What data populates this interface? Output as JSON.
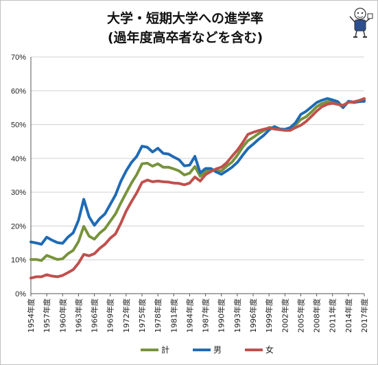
{
  "chart_data": {
    "type": "line",
    "title": "大学・短期大学への進学率",
    "subtitle": "(過年度高卒者などを含む)",
    "xlabel": "",
    "ylabel": "",
    "ylim": [
      0,
      70
    ],
    "y_ticks": [
      "0%",
      "10%",
      "20%",
      "30%",
      "40%",
      "50%",
      "60%",
      "70%"
    ],
    "x_tick_labels": [
      "1954年度",
      "1957年度",
      "1960年度",
      "1963年度",
      "1966年度",
      "1969年度",
      "1972年度",
      "1975年度",
      "1978年度",
      "1981年度",
      "1984年度",
      "1987年度",
      "1990年度",
      "1993年度",
      "1996年度",
      "1999年度",
      "2002年度",
      "2005年度",
      "2008年度",
      "2011年度",
      "2014年度",
      "2017年度"
    ],
    "x": [
      1954,
      1955,
      1956,
      1957,
      1958,
      1959,
      1960,
      1961,
      1962,
      1963,
      1964,
      1965,
      1966,
      1967,
      1968,
      1969,
      1970,
      1971,
      1972,
      1973,
      1974,
      1975,
      1976,
      1977,
      1978,
      1979,
      1980,
      1981,
      1982,
      1983,
      1984,
      1985,
      1986,
      1987,
      1988,
      1989,
      1990,
      1991,
      1992,
      1993,
      1994,
      1995,
      1996,
      1997,
      1998,
      1999,
      2000,
      2001,
      2002,
      2003,
      2004,
      2005,
      2006,
      2007,
      2008,
      2009,
      2010,
      2011,
      2012,
      2013,
      2014,
      2015,
      2016,
      2017
    ],
    "grid": true,
    "legend_position": "bottom",
    "series": [
      {
        "name": "計",
        "color": "#77933c",
        "values": [
          10.1,
          10.1,
          9.8,
          11.3,
          10.7,
          10.1,
          10.3,
          11.8,
          12.8,
          15.4,
          19.9,
          17.0,
          16.1,
          17.9,
          19.2,
          21.4,
          23.6,
          26.8,
          29.8,
          32.7,
          35.2,
          38.4,
          38.6,
          37.7,
          38.4,
          37.4,
          37.4,
          36.9,
          36.3,
          35.1,
          35.6,
          37.6,
          34.7,
          36.1,
          36.7,
          36.3,
          36.3,
          37.7,
          38.9,
          40.9,
          43.3,
          45.2,
          46.2,
          47.3,
          48.2,
          49.1,
          49.1,
          48.6,
          48.6,
          49.0,
          49.9,
          51.5,
          52.3,
          53.7,
          55.3,
          56.2,
          56.8,
          56.7,
          56.2,
          55.1,
          56.7,
          56.5,
          56.8,
          57.3
        ]
      },
      {
        "name": "男",
        "color": "#1f6bb5",
        "values": [
          15.3,
          15.0,
          14.6,
          16.7,
          15.8,
          15.1,
          14.9,
          16.7,
          18.0,
          21.7,
          27.9,
          22.7,
          20.2,
          22.2,
          23.6,
          26.4,
          29.2,
          33.2,
          36.3,
          38.8,
          40.6,
          43.6,
          43.3,
          41.9,
          43.0,
          41.5,
          41.3,
          40.4,
          39.6,
          37.8,
          38.0,
          40.6,
          35.7,
          37.0,
          37.0,
          36.0,
          35.3,
          36.3,
          37.4,
          38.8,
          40.9,
          42.9,
          44.2,
          45.6,
          46.8,
          48.4,
          49.4,
          48.7,
          48.6,
          49.1,
          50.5,
          53.0,
          53.9,
          55.2,
          56.5,
          57.2,
          57.7,
          57.3,
          56.8,
          55.0,
          56.9,
          56.6,
          56.8,
          56.9
        ]
      },
      {
        "name": "女",
        "color": "#c0504d",
        "values": [
          4.6,
          5.0,
          5.0,
          5.6,
          5.2,
          5.0,
          5.4,
          6.2,
          7.1,
          9.0,
          11.6,
          11.2,
          11.8,
          13.4,
          14.6,
          16.4,
          17.7,
          20.8,
          24.4,
          27.2,
          29.8,
          32.9,
          33.6,
          33.1,
          33.3,
          33.1,
          33.0,
          32.7,
          32.6,
          32.2,
          32.7,
          34.5,
          33.3,
          35.2,
          36.1,
          36.9,
          37.4,
          38.7,
          40.6,
          42.4,
          44.6,
          47.1,
          47.7,
          48.2,
          48.6,
          49.0,
          48.7,
          48.5,
          48.3,
          48.3,
          49.1,
          49.8,
          50.9,
          52.4,
          54.0,
          55.3,
          56.0,
          56.3,
          56.0,
          55.7,
          56.6,
          56.7,
          57.1,
          57.7
        ]
      }
    ]
  }
}
